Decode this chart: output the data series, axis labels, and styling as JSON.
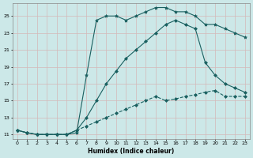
{
  "xlabel": "Humidex (Indice chaleur)",
  "background_color": "#cce8e8",
  "grid_color": "#c8d8d8",
  "line_color": "#1a6060",
  "xlim": [
    -0.5,
    23.5
  ],
  "ylim": [
    10.5,
    26.5
  ],
  "xticks": [
    0,
    1,
    2,
    3,
    4,
    5,
    6,
    7,
    8,
    9,
    10,
    11,
    12,
    13,
    14,
    15,
    16,
    17,
    18,
    19,
    20,
    21,
    22,
    23
  ],
  "yticks": [
    11,
    13,
    15,
    17,
    19,
    21,
    23,
    25
  ],
  "lines": [
    {
      "x": [
        0,
        1,
        2,
        3,
        4,
        5,
        6,
        7,
        8,
        9,
        10,
        11,
        12,
        13,
        14,
        15,
        16,
        17,
        18,
        19,
        20,
        21,
        22,
        23
      ],
      "y": [
        11.5,
        11.2,
        11.0,
        11.0,
        11.0,
        11.0,
        11.2,
        18.0,
        24.5,
        25.0,
        25.0,
        24.5,
        25.0,
        25.5,
        26.0,
        26.0,
        25.5,
        25.5,
        25.0,
        24.0,
        24.0,
        23.5,
        23.0,
        22.5
      ],
      "marker": "*",
      "markersize": 3,
      "linewidth": 0.8,
      "linestyle": "-"
    },
    {
      "x": [
        0,
        1,
        2,
        3,
        4,
        5,
        6,
        7,
        8,
        9,
        10,
        11,
        12,
        13,
        14,
        15,
        16,
        17,
        18,
        19,
        20,
        21,
        22,
        23
      ],
      "y": [
        11.5,
        11.2,
        11.0,
        11.0,
        11.0,
        11.0,
        11.5,
        13.0,
        15.0,
        17.0,
        18.5,
        20.0,
        21.0,
        22.0,
        23.0,
        24.0,
        24.5,
        24.0,
        23.5,
        19.5,
        18.0,
        17.0,
        16.5,
        16.0
      ],
      "marker": "D",
      "markersize": 2,
      "linewidth": 0.8,
      "linestyle": "-"
    },
    {
      "x": [
        0,
        1,
        2,
        3,
        4,
        5,
        6,
        7,
        8,
        9,
        10,
        11,
        12,
        13,
        14,
        15,
        16,
        17,
        18,
        19,
        20,
        21,
        22,
        23
      ],
      "y": [
        11.5,
        11.2,
        11.0,
        11.0,
        11.0,
        11.0,
        11.5,
        12.0,
        12.5,
        13.0,
        13.5,
        14.0,
        14.5,
        15.0,
        15.5,
        15.0,
        15.2,
        15.5,
        15.7,
        16.0,
        16.2,
        15.5,
        15.5,
        15.5
      ],
      "marker": "D",
      "markersize": 2,
      "linewidth": 0.8,
      "linestyle": "--"
    }
  ]
}
